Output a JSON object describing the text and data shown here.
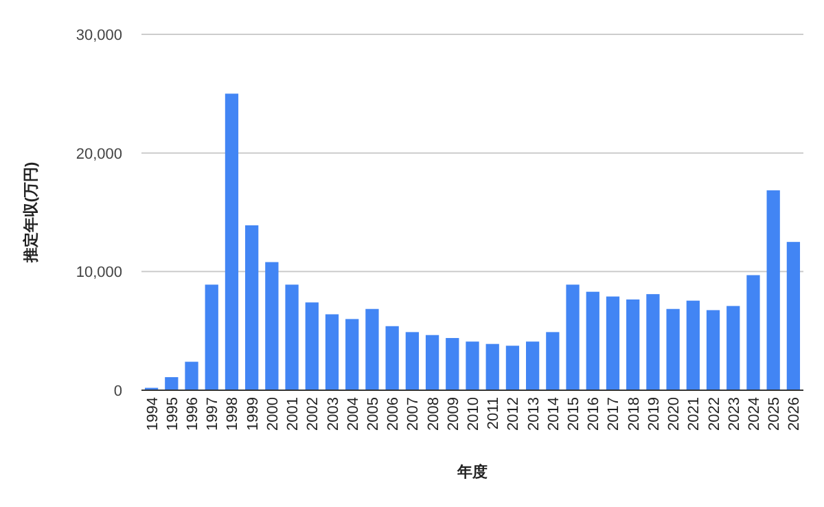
{
  "chart_data": {
    "type": "bar",
    "xlabel": "年度",
    "ylabel": "推定年収(万円)",
    "categories": [
      "1994",
      "1995",
      "1996",
      "1997",
      "1998",
      "1999",
      "2000",
      "2001",
      "2002",
      "2003",
      "2004",
      "2005",
      "2006",
      "2007",
      "2008",
      "2009",
      "2010",
      "2011",
      "2012",
      "2013",
      "2014",
      "2015",
      "2016",
      "2017",
      "2018",
      "2019",
      "2020",
      "2021",
      "2022",
      "2023",
      "2024",
      "2025",
      "2026"
    ],
    "values": [
      200,
      1100,
      2400,
      8900,
      25000,
      13900,
      10800,
      8900,
      7400,
      6400,
      6000,
      6850,
      5400,
      4900,
      4650,
      4400,
      4100,
      3900,
      3750,
      4100,
      4900,
      8900,
      8300,
      7900,
      7650,
      8100,
      6850,
      7550,
      6750,
      7100,
      9700,
      16850,
      12500
    ],
    "color": "#4285f4",
    "ylim": [
      0,
      30000
    ],
    "yticks": [
      {
        "value": 0,
        "label": "0"
      },
      {
        "value": 10000,
        "label": "10,000"
      },
      {
        "value": 20000,
        "label": "20,000"
      },
      {
        "value": 30000,
        "label": "30,000"
      }
    ],
    "grid": "y"
  }
}
